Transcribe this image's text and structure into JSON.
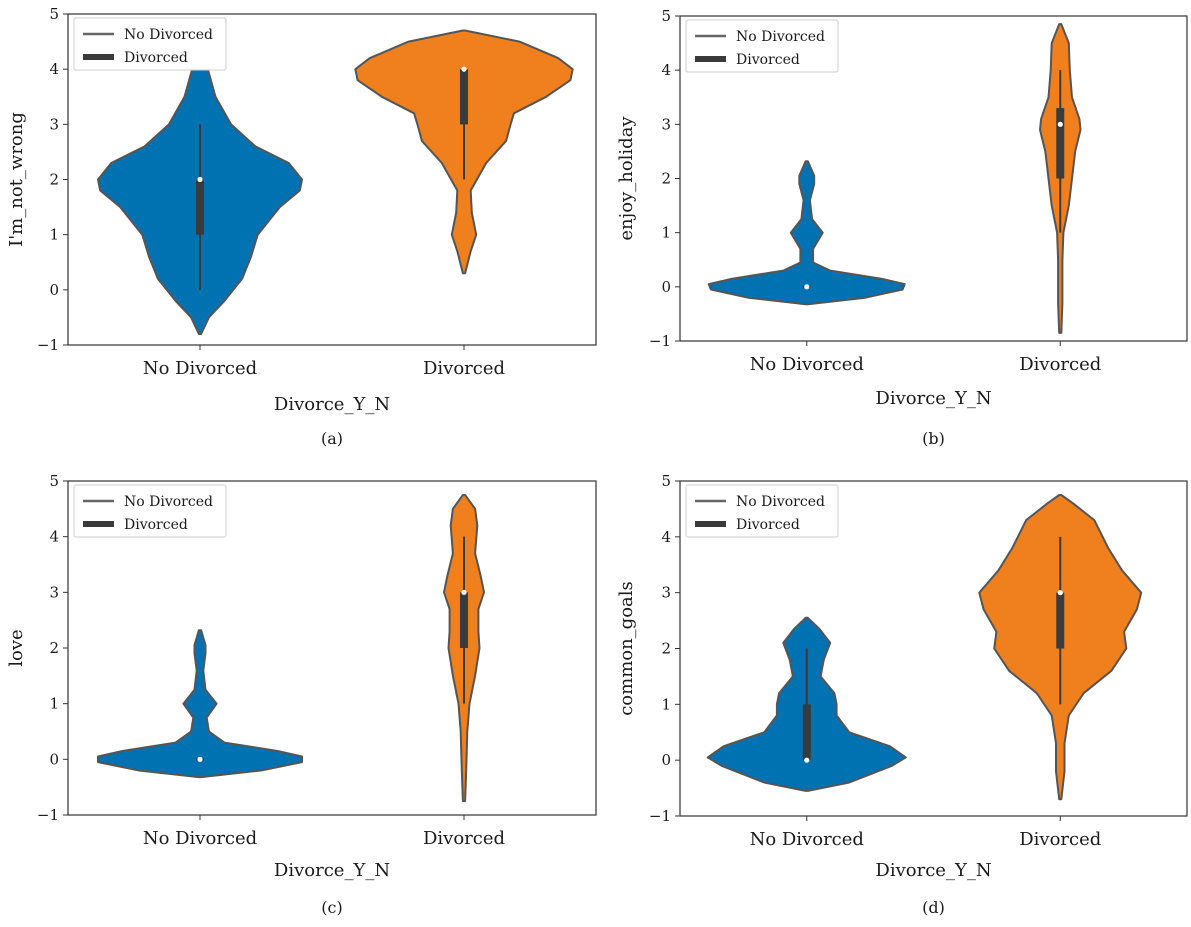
{
  "colors": {
    "no_divorced": "#0072b2",
    "divorced": "#f07f1d",
    "outline": "#555555",
    "box": "#3a3a3a",
    "median": "#ffffff"
  },
  "legend": {
    "items": [
      {
        "label": "No Divorced",
        "style": "thin-line"
      },
      {
        "label": "Divorced",
        "style": "thick-bar"
      }
    ]
  },
  "chart_data": [
    {
      "type": "violin",
      "panel": "(a)",
      "xlabel": "Divorce_Y_N",
      "ylabel": "I'm_not_wrong",
      "ylim": [
        -1,
        5
      ],
      "yticks": [
        -1,
        0,
        1,
        2,
        3,
        4,
        5
      ],
      "categories": [
        "No Divorced",
        "Divorced"
      ],
      "violins": [
        {
          "category": "No Divorced",
          "min": 0,
          "q1": 1,
          "median": 2,
          "q3": 2,
          "max": 3,
          "profile": [
            [
              -0.8,
              0.01
            ],
            [
              -0.5,
              0.08
            ],
            [
              -0.2,
              0.22
            ],
            [
              0.2,
              0.38
            ],
            [
              0.6,
              0.46
            ],
            [
              1.0,
              0.52
            ],
            [
              1.5,
              0.72
            ],
            [
              1.8,
              0.9
            ],
            [
              2.0,
              0.92
            ],
            [
              2.3,
              0.8
            ],
            [
              2.6,
              0.5
            ],
            [
              3.0,
              0.28
            ],
            [
              3.5,
              0.14
            ],
            [
              4.0,
              0.07
            ],
            [
              4.4,
              0.04
            ],
            [
              4.7,
              0.01
            ]
          ]
        },
        {
          "category": "Divorced",
          "min": 2,
          "q1": 3,
          "median": 4,
          "q3": 4,
          "max": 4,
          "profile": [
            [
              0.3,
              0.01
            ],
            [
              0.7,
              0.06
            ],
            [
              1.0,
              0.11
            ],
            [
              1.4,
              0.07
            ],
            [
              1.8,
              0.06
            ],
            [
              2.3,
              0.2
            ],
            [
              2.7,
              0.38
            ],
            [
              3.0,
              0.42
            ],
            [
              3.2,
              0.45
            ],
            [
              3.5,
              0.74
            ],
            [
              3.8,
              0.96
            ],
            [
              4.0,
              0.98
            ],
            [
              4.2,
              0.85
            ],
            [
              4.5,
              0.5
            ],
            [
              4.7,
              0.01
            ]
          ]
        }
      ]
    },
    {
      "type": "violin",
      "panel": "(b)",
      "xlabel": "Divorce_Y_N",
      "ylabel": "enjoy_holiday",
      "ylim": [
        -1,
        5
      ],
      "yticks": [
        -1,
        0,
        1,
        2,
        3,
        4,
        5
      ],
      "categories": [
        "No Divorced",
        "Divorced"
      ],
      "violins": [
        {
          "category": "No Divorced",
          "min": 0,
          "q1": 0,
          "median": 0,
          "q3": 0,
          "max": 0,
          "profile": [
            [
              -0.32,
              0.01
            ],
            [
              -0.2,
              0.55
            ],
            [
              -0.05,
              0.9
            ],
            [
              0.05,
              0.92
            ],
            [
              0.15,
              0.7
            ],
            [
              0.3,
              0.22
            ],
            [
              0.45,
              0.06
            ],
            [
              0.7,
              0.06
            ],
            [
              1.0,
              0.15
            ],
            [
              1.25,
              0.05
            ],
            [
              1.6,
              0.03
            ],
            [
              1.9,
              0.07
            ],
            [
              2.05,
              0.07
            ],
            [
              2.32,
              0.01
            ]
          ]
        },
        {
          "category": "Divorced",
          "min": 1,
          "q1": 2,
          "median": 3,
          "q3": 3.3,
          "max": 4,
          "profile": [
            [
              -0.85,
              0.01
            ],
            [
              -0.3,
              0.02
            ],
            [
              0.5,
              0.02
            ],
            [
              1.0,
              0.03
            ],
            [
              1.5,
              0.08
            ],
            [
              2.0,
              0.11
            ],
            [
              2.5,
              0.14
            ],
            [
              2.9,
              0.19
            ],
            [
              3.1,
              0.18
            ],
            [
              3.5,
              0.11
            ],
            [
              4.0,
              0.09
            ],
            [
              4.5,
              0.08
            ],
            [
              4.85,
              0.01
            ]
          ]
        }
      ]
    },
    {
      "type": "violin",
      "panel": "(c)",
      "xlabel": "Divorce_Y_N",
      "ylabel": "love",
      "ylim": [
        -1,
        5
      ],
      "yticks": [
        -1,
        0,
        1,
        2,
        3,
        4,
        5
      ],
      "categories": [
        "No Divorced",
        "Divorced"
      ],
      "violins": [
        {
          "category": "No Divorced",
          "min": 0,
          "q1": 0,
          "median": 0,
          "q3": 0,
          "max": 0,
          "profile": [
            [
              -0.32,
              0.01
            ],
            [
              -0.2,
              0.55
            ],
            [
              -0.05,
              0.92
            ],
            [
              0.05,
              0.92
            ],
            [
              0.15,
              0.7
            ],
            [
              0.3,
              0.22
            ],
            [
              0.5,
              0.08
            ],
            [
              0.75,
              0.06
            ],
            [
              1.0,
              0.15
            ],
            [
              1.25,
              0.05
            ],
            [
              1.6,
              0.03
            ],
            [
              1.9,
              0.05
            ],
            [
              2.05,
              0.05
            ],
            [
              2.32,
              0.01
            ]
          ]
        },
        {
          "category": "Divorced",
          "min": 1,
          "q1": 2,
          "median": 3,
          "q3": 3,
          "max": 4,
          "profile": [
            [
              -0.75,
              0.01
            ],
            [
              -0.2,
              0.02
            ],
            [
              0.5,
              0.03
            ],
            [
              1.0,
              0.05
            ],
            [
              1.5,
              0.1
            ],
            [
              2.0,
              0.14
            ],
            [
              2.3,
              0.13
            ],
            [
              2.7,
              0.13
            ],
            [
              3.0,
              0.18
            ],
            [
              3.3,
              0.15
            ],
            [
              3.7,
              0.1
            ],
            [
              4.2,
              0.12
            ],
            [
              4.5,
              0.1
            ],
            [
              4.75,
              0.01
            ]
          ]
        }
      ]
    },
    {
      "type": "violin",
      "panel": "(d)",
      "xlabel": "Divorce_Y_N",
      "ylabel": "common_goals",
      "ylim": [
        -1,
        5
      ],
      "yticks": [
        -1,
        0,
        1,
        2,
        3,
        4,
        5
      ],
      "categories": [
        "No Divorced",
        "Divorced"
      ],
      "violins": [
        {
          "category": "No Divorced",
          "min": 0,
          "q1": 0,
          "median": 0,
          "q3": 1,
          "max": 2,
          "profile": [
            [
              -0.55,
              0.01
            ],
            [
              -0.4,
              0.4
            ],
            [
              -0.1,
              0.8
            ],
            [
              0.05,
              0.93
            ],
            [
              0.25,
              0.78
            ],
            [
              0.5,
              0.4
            ],
            [
              0.8,
              0.28
            ],
            [
              1.0,
              0.28
            ],
            [
              1.2,
              0.26
            ],
            [
              1.5,
              0.13
            ],
            [
              1.8,
              0.16
            ],
            [
              2.1,
              0.22
            ],
            [
              2.35,
              0.12
            ],
            [
              2.55,
              0.01
            ]
          ]
        },
        {
          "category": "Divorced",
          "min": 1,
          "q1": 2,
          "median": 3,
          "q3": 3,
          "max": 4,
          "profile": [
            [
              -0.7,
              0.01
            ],
            [
              -0.2,
              0.04
            ],
            [
              0.3,
              0.04
            ],
            [
              0.8,
              0.08
            ],
            [
              1.2,
              0.22
            ],
            [
              1.6,
              0.48
            ],
            [
              2.0,
              0.62
            ],
            [
              2.3,
              0.6
            ],
            [
              2.7,
              0.72
            ],
            [
              3.0,
              0.76
            ],
            [
              3.4,
              0.58
            ],
            [
              3.8,
              0.45
            ],
            [
              4.3,
              0.32
            ],
            [
              4.6,
              0.12
            ],
            [
              4.75,
              0.01
            ]
          ]
        }
      ]
    }
  ]
}
